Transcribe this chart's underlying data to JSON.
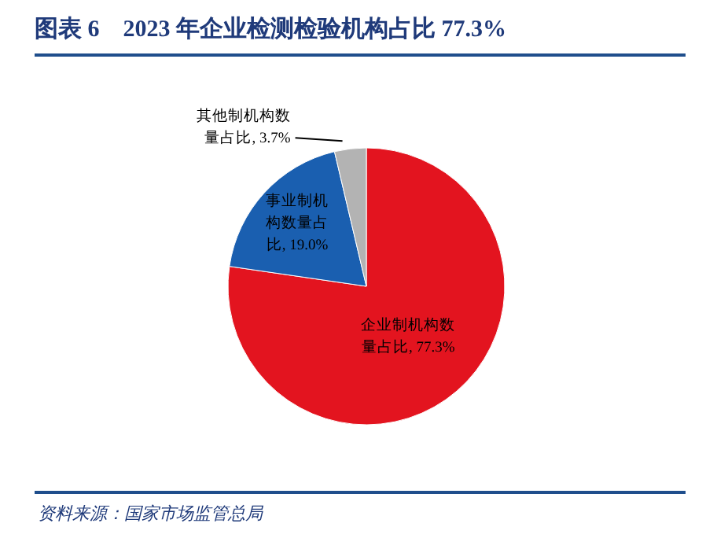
{
  "chart_data": {
    "type": "pie",
    "title": "图表 6　2023 年企业检测检验机构占比 77.3%",
    "categories": [
      "企业制机构数量占比",
      "事业制机构数量占比",
      "其他制机构数量占比"
    ],
    "values": [
      77.3,
      19.0,
      3.7
    ],
    "value_labels": [
      "77.3%",
      "19.0%",
      "3.7%"
    ],
    "colors": [
      "#e3141f",
      "#1a5fb0",
      "#b3b3b3"
    ],
    "annotations": [
      "资料来源：国家市场监管总局"
    ]
  }
}
